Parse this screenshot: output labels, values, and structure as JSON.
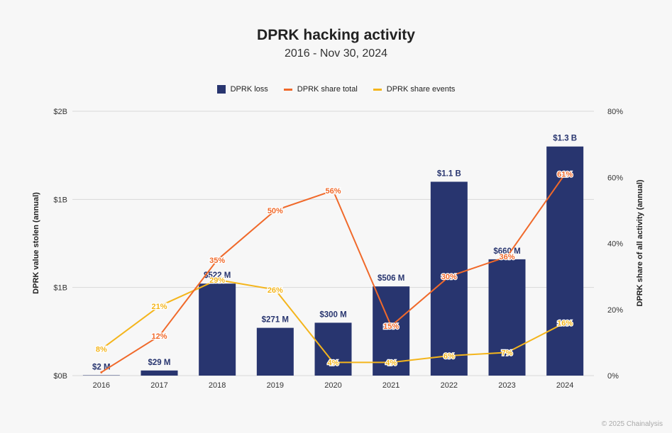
{
  "title": "DPRK hacking activity",
  "subtitle": "2016 - Nov 30, 2024",
  "footer": "© 2025 Chainalysis",
  "colors": {
    "bar": "#28356f",
    "share_total": "#f0692a",
    "share_events": "#f4b51c",
    "grid": "#d9d9d9",
    "bar_label": "#28356f"
  },
  "legend": [
    {
      "label": "DPRK loss",
      "kind": "box",
      "color": "#28356f"
    },
    {
      "label": "DPRK share total",
      "kind": "line",
      "color": "#f0692a"
    },
    {
      "label": "DPRK share events",
      "kind": "line",
      "color": "#f4b51c"
    }
  ],
  "chart_data": {
    "type": "bar",
    "title": "DPRK hacking activity",
    "subtitle": "2016 - Nov 30, 2024",
    "categories": [
      "2016",
      "2017",
      "2018",
      "2019",
      "2020",
      "2021",
      "2022",
      "2023",
      "2024"
    ],
    "ylabel": "DPRK value stolen (annual)",
    "y2label": "DPRK share of all activity (annual)",
    "y_ticks": [
      "$0B",
      "$1B",
      "$1B",
      "$2B"
    ],
    "y2_ticks": [
      "0%",
      "20%",
      "40%",
      "60%",
      "80%"
    ],
    "ylim": [
      0,
      1.5
    ],
    "y2lim": [
      0,
      80
    ],
    "grid": true,
    "legend_position": "top-center",
    "series": [
      {
        "name": "DPRK loss",
        "type": "bar",
        "axis": "left",
        "unit": "B USD",
        "values": [
          0.002,
          0.029,
          0.522,
          0.271,
          0.3,
          0.506,
          1.1,
          0.66,
          1.3
        ],
        "labels": [
          "$2 M",
          "$29 M",
          "$522 M",
          "$271 M",
          "$300 M",
          "$506 M",
          "$1.1 B",
          "$660 M",
          "$1.3 B"
        ]
      },
      {
        "name": "DPRK share total",
        "type": "line",
        "axis": "right",
        "values": [
          1,
          12,
          35,
          50,
          56,
          15,
          30,
          36,
          61
        ],
        "labels": [
          "",
          "12%",
          "35%",
          "50%",
          "56%",
          "15%",
          "30%",
          "36%",
          "61%"
        ]
      },
      {
        "name": "DPRK share events",
        "type": "line",
        "axis": "right",
        "values": [
          8,
          21,
          29,
          26,
          4,
          4,
          6,
          7,
          16
        ],
        "labels": [
          "8%",
          "21%",
          "29%",
          "26%",
          "4%",
          "4%",
          "6%",
          "7%",
          "16%"
        ]
      }
    ]
  }
}
